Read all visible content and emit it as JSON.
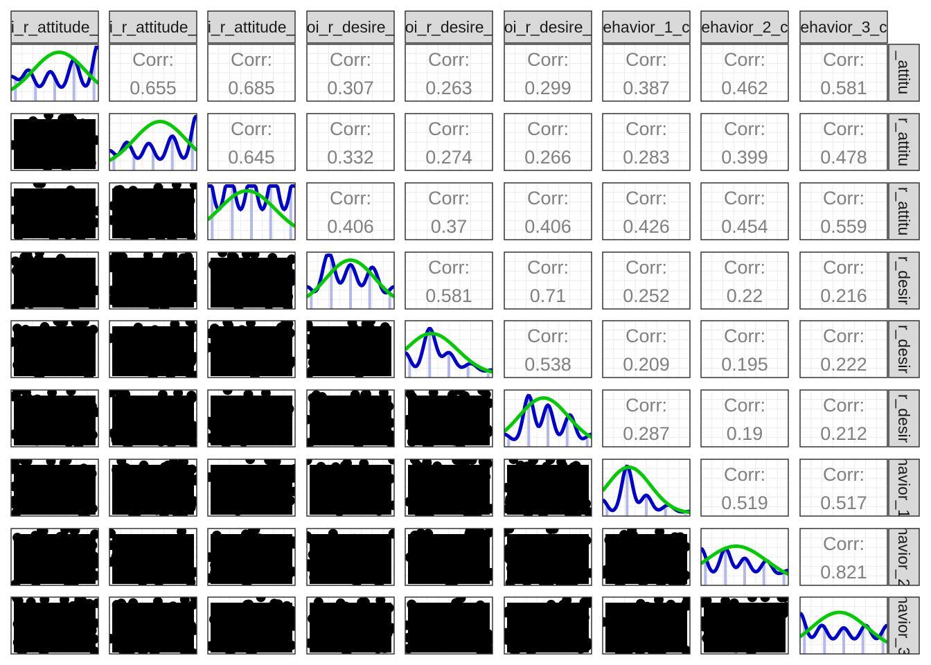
{
  "chart_data": {
    "type": "scatter-matrix",
    "column_strip_labels": [
      "i_r_attitude_",
      "i_r_attitude_",
      "i_r_attitude_",
      "oi_r_desire_",
      "oi_r_desire_",
      "oi_r_desire_",
      "ehavior_1_c",
      "ehavior_2_c",
      "ehavior_3_c"
    ],
    "row_strip_labels": [
      "_attitu",
      "r_attitu",
      "r_attitu",
      "r_desir",
      "r_desir",
      "r_desir",
      "havior_1",
      "havior_2",
      "havior_3"
    ],
    "corr_label": "Corr:",
    "correlations": [
      {
        "row": 0,
        "col": 1,
        "value": "0.655"
      },
      {
        "row": 0,
        "col": 2,
        "value": "0.685"
      },
      {
        "row": 0,
        "col": 3,
        "value": "0.307"
      },
      {
        "row": 0,
        "col": 4,
        "value": "0.263"
      },
      {
        "row": 0,
        "col": 5,
        "value": "0.299"
      },
      {
        "row": 0,
        "col": 6,
        "value": "0.387"
      },
      {
        "row": 0,
        "col": 7,
        "value": "0.462"
      },
      {
        "row": 0,
        "col": 8,
        "value": "0.581"
      },
      {
        "row": 1,
        "col": 2,
        "value": "0.645"
      },
      {
        "row": 1,
        "col": 3,
        "value": "0.332"
      },
      {
        "row": 1,
        "col": 4,
        "value": "0.274"
      },
      {
        "row": 1,
        "col": 5,
        "value": "0.266"
      },
      {
        "row": 1,
        "col": 6,
        "value": "0.283"
      },
      {
        "row": 1,
        "col": 7,
        "value": "0.399"
      },
      {
        "row": 1,
        "col": 8,
        "value": "0.478"
      },
      {
        "row": 2,
        "col": 3,
        "value": "0.406"
      },
      {
        "row": 2,
        "col": 4,
        "value": "0.37"
      },
      {
        "row": 2,
        "col": 5,
        "value": "0.406"
      },
      {
        "row": 2,
        "col": 6,
        "value": "0.426"
      },
      {
        "row": 2,
        "col": 7,
        "value": "0.454"
      },
      {
        "row": 2,
        "col": 8,
        "value": "0.559"
      },
      {
        "row": 3,
        "col": 4,
        "value": "0.581"
      },
      {
        "row": 3,
        "col": 5,
        "value": "0.71"
      },
      {
        "row": 3,
        "col": 6,
        "value": "0.252"
      },
      {
        "row": 3,
        "col": 7,
        "value": "0.22"
      },
      {
        "row": 3,
        "col": 8,
        "value": "0.216"
      },
      {
        "row": 4,
        "col": 5,
        "value": "0.538"
      },
      {
        "row": 4,
        "col": 6,
        "value": "0.209"
      },
      {
        "row": 4,
        "col": 7,
        "value": "0.195"
      },
      {
        "row": 4,
        "col": 8,
        "value": "0.222"
      },
      {
        "row": 5,
        "col": 6,
        "value": "0.287"
      },
      {
        "row": 5,
        "col": 7,
        "value": "0.19"
      },
      {
        "row": 5,
        "col": 8,
        "value": "0.212"
      },
      {
        "row": 6,
        "col": 7,
        "value": "0.519"
      },
      {
        "row": 6,
        "col": 8,
        "value": "0.517"
      },
      {
        "row": 7,
        "col": 8,
        "value": "0.821"
      }
    ],
    "diagonal_panels": "density (blue) with fitted normal curve (green) over histogram bars",
    "lower_panels": "scatter points (black)",
    "colors": {
      "density": "#0000cc",
      "normal_curve": "#00cc00",
      "histogram": "#b4b8ea",
      "points": "#000000",
      "corr_text": "#808080",
      "strip_fill": "#d9d9d9",
      "panel_border": "#333333",
      "grid": "#ebebeb"
    }
  }
}
